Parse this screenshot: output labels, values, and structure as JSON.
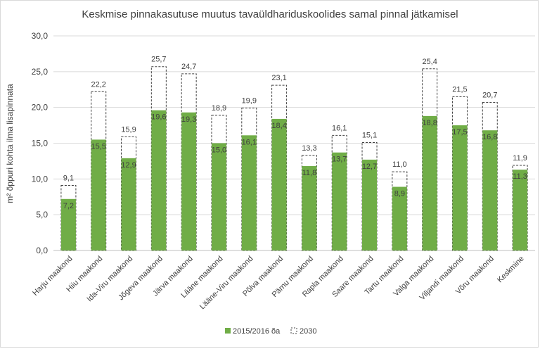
{
  "chart_data": {
    "type": "bar",
    "title": "Keskmise pinnakasutuse muutus tavaüldhariduskoolides samal pinnal jätkamisel",
    "ylabel": "m² õppuri kohta ilma lisapinnata",
    "xlabel": "",
    "ylim": [
      0,
      30
    ],
    "yticks": [
      "0,0",
      "5,0",
      "10,0",
      "15,0",
      "20,0",
      "25,0",
      "30,0"
    ],
    "ytick_values": [
      0,
      5,
      10,
      15,
      20,
      25,
      30
    ],
    "categories": [
      "Harju maakond",
      "Hiiu maakond",
      "Ida-Viru maakond",
      "Jõgeva maakond",
      "Järva maakond",
      "Lääne maakond",
      "Lääne-Viru maakond",
      "Põlva maakond",
      "Pärnu maakond",
      "Rapla maakond",
      "Saare maakond",
      "Tartu maakond",
      "Valga maakond",
      "Viljandi maakond",
      "Võru maakond",
      "Keskmine"
    ],
    "series": [
      {
        "name": "2015/2016 õa",
        "color": "#70ad47",
        "values": [
          7.2,
          15.5,
          12.9,
          19.6,
          19.3,
          15.0,
          16.1,
          18.4,
          11.8,
          13.7,
          12.7,
          8.9,
          18.8,
          17.5,
          16.8,
          11.3
        ],
        "labels": [
          "7,2",
          "15,5",
          "12,9",
          "19,6",
          "19,3",
          "15,0",
          "16,1",
          "18,4",
          "11,8",
          "13,7",
          "12,7",
          "8,9",
          "18,8",
          "17,5",
          "16,8",
          "11,3"
        ]
      },
      {
        "name": "2030",
        "style": "dashed-outline",
        "values": [
          9.1,
          22.2,
          15.9,
          25.7,
          24.7,
          18.9,
          19.9,
          23.1,
          13.3,
          16.1,
          15.1,
          11.0,
          25.4,
          21.5,
          20.7,
          11.9
        ],
        "labels": [
          "9,1",
          "22,2",
          "15,9",
          "25,7",
          "24,7",
          "18,9",
          "19,9",
          "23,1",
          "13,3",
          "16,1",
          "15,1",
          "11,0",
          "25,4",
          "21,5",
          "20,7",
          "11,9"
        ]
      }
    ],
    "grid": true,
    "legend_position": "bottom-center"
  }
}
